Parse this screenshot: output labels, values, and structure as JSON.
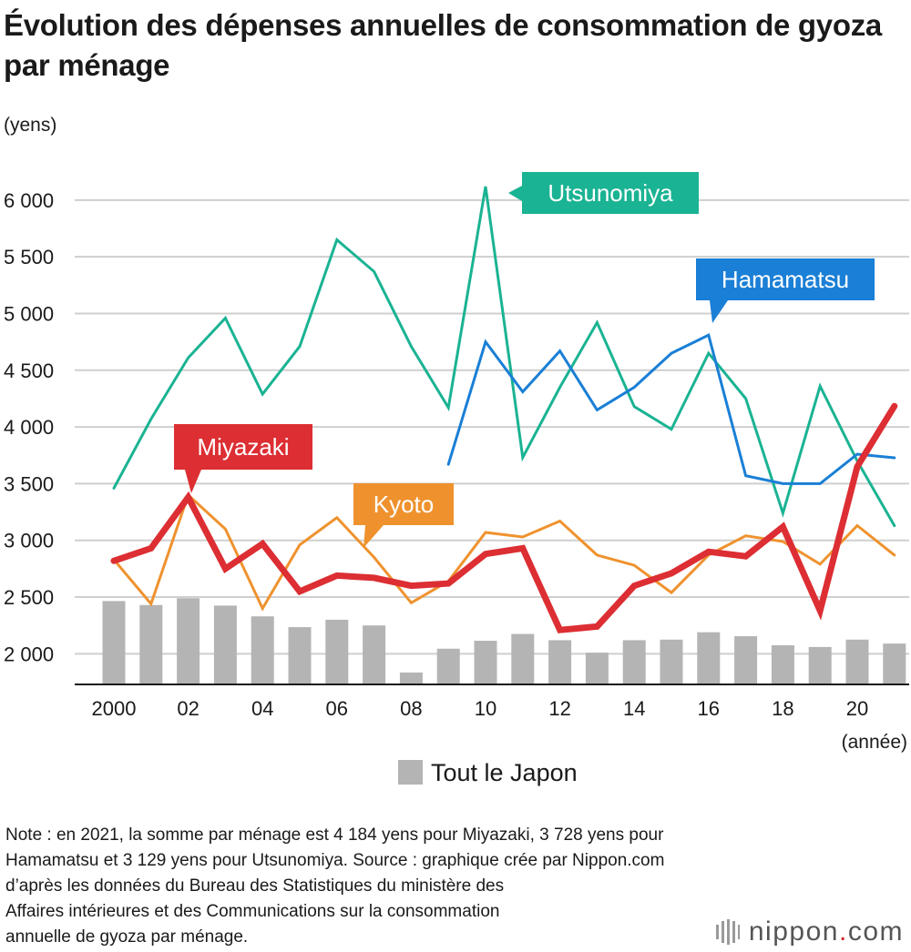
{
  "title": "Évolution des dépenses annuelles de consommation de gyoza par ménage",
  "note": "Note : en 2021, la somme par ménage est 4 184 yens pour Miyazaki, 3 728 yens pour\nHamamatsu et 3 129 yens pour Utsunomiya. Source : graphique crée par Nippon.com\nd’après les données du Bureau des Statistiques du ministère des\nAffaires intérieures et des Communications sur la consommation\nannuelle de gyoza par ménage.",
  "logo": {
    "name": "nippon",
    "dot": ".",
    "tld": "com"
  },
  "chart_data": {
    "type": "line",
    "ylabel": "(yens)",
    "xlabel": "(année)",
    "ylim": [
      1730,
      6400
    ],
    "grid": true,
    "legend_position": "bottom-center",
    "y_ticks": [
      2000,
      2500,
      3000,
      3500,
      4000,
      4500,
      5000,
      5500,
      6000
    ],
    "y_tick_labels": [
      "2 000",
      "2 500",
      "3 000",
      "3 500",
      "4 000",
      "4 500",
      "5 000",
      "5 500",
      "6 000"
    ],
    "x": [
      2000,
      2001,
      2002,
      2003,
      2004,
      2005,
      2006,
      2007,
      2008,
      2009,
      2010,
      2011,
      2012,
      2013,
      2014,
      2015,
      2016,
      2017,
      2018,
      2019,
      2020,
      2021
    ],
    "x_ticks": [
      2000,
      2002,
      2004,
      2006,
      2008,
      2010,
      2012,
      2014,
      2016,
      2018,
      2020
    ],
    "x_tick_labels": [
      "2000",
      "02",
      "04",
      "06",
      "08",
      "10",
      "12",
      "14",
      "16",
      "18",
      "20"
    ],
    "bars": {
      "name": "Tout le Japon",
      "color": "#b4b4b4",
      "values": [
        2465,
        2430,
        2490,
        2425,
        2330,
        2235,
        2300,
        2250,
        1835,
        2045,
        2115,
        2175,
        2120,
        2010,
        2120,
        2125,
        2190,
        2155,
        2075,
        2060,
        2125,
        2090
      ]
    },
    "series": [
      {
        "name": "Utsunomiya",
        "color": "#1ab393",
        "width": 3,
        "values": [
          3460,
          4070,
          4610,
          4960,
          4290,
          4710,
          5650,
          5370,
          4710,
          4170,
          6120,
          3730,
          4350,
          4920,
          4180,
          3980,
          4650,
          4250,
          3240,
          4360,
          3700,
          3129
        ]
      },
      {
        "name": "Hamamatsu",
        "color": "#1a7fd6",
        "width": 3,
        "values": [
          null,
          null,
          null,
          null,
          null,
          null,
          null,
          null,
          null,
          3670,
          4750,
          4310,
          4670,
          4150,
          4350,
          4650,
          4810,
          3570,
          3500,
          3500,
          3760,
          3728
        ]
      },
      {
        "name": "Kyoto",
        "color": "#ef922e",
        "width": 3,
        "values": [
          2830,
          2440,
          3400,
          3100,
          2400,
          2960,
          3200,
          2850,
          2450,
          2640,
          3070,
          3030,
          3170,
          2870,
          2780,
          2540,
          2870,
          3040,
          2990,
          2790,
          3130,
          2870
        ]
      },
      {
        "name": "Miyazaki",
        "color": "#dc2e33",
        "width": 7,
        "values": [
          2820,
          2930,
          3380,
          2750,
          2970,
          2550,
          2690,
          2670,
          2600,
          2620,
          2880,
          2930,
          2210,
          2240,
          2600,
          2710,
          2900,
          2860,
          3120,
          2380,
          3650,
          4184
        ]
      }
    ]
  }
}
